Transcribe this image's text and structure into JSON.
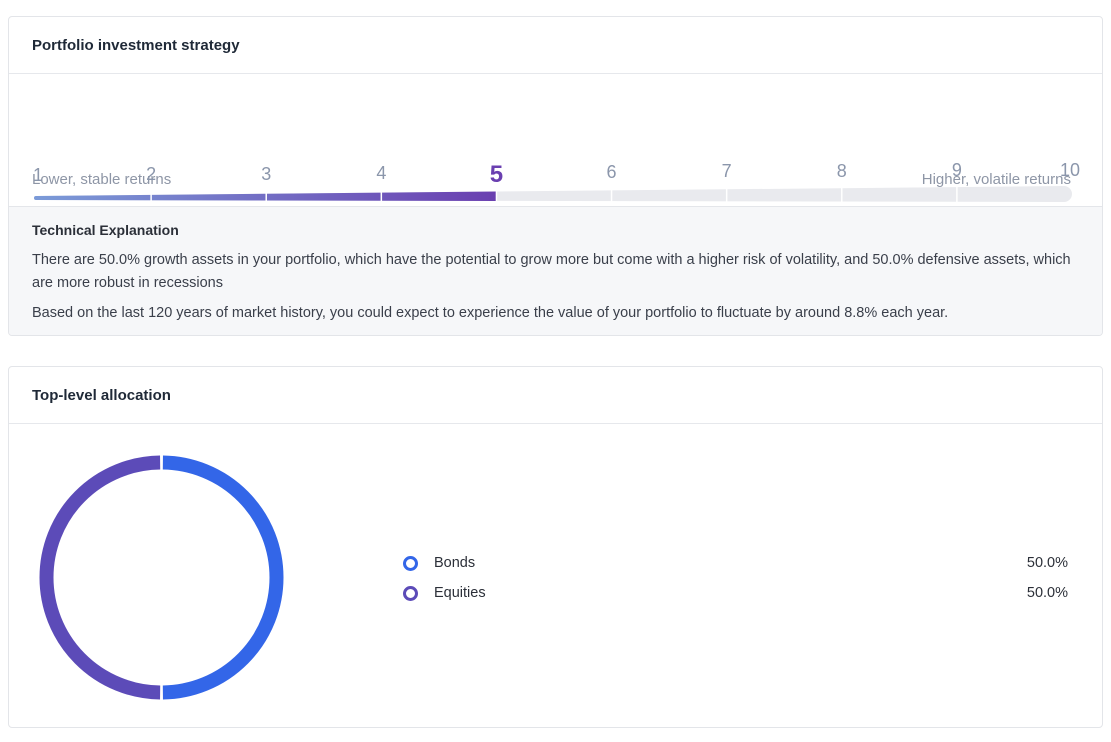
{
  "strategy": {
    "title": "Portfolio investment strategy",
    "scale": {
      "levels": [
        "1",
        "2",
        "3",
        "4",
        "5",
        "6",
        "7",
        "8",
        "9",
        "10"
      ],
      "selected_level": 5,
      "low_caption": "Lower, stable returns",
      "high_caption": "Higher, volatile returns"
    },
    "explanation": {
      "title": "Technical Explanation",
      "paragraph1": "There are 50.0% growth assets in your portfolio, which have the potential to grow more but come with a higher risk of volatility, and 50.0% defensive assets, which are more robust in recessions",
      "paragraph2": "Based on the last 120 years of market history, you could expect to experience the value of your portfolio to fluctuate by around 8.8% each year."
    }
  },
  "allocation": {
    "title": "Top-level allocation",
    "items": [
      {
        "label": "Bonds",
        "value_text": "50.0%",
        "percent": 50.0,
        "color": "#3366e8"
      },
      {
        "label": "Equities",
        "value_text": "50.0%",
        "percent": 50.0,
        "color": "#5c4bb8"
      }
    ]
  },
  "colors": {
    "accent_purple": "#6a3fb0",
    "track_empty": "#e9eaee",
    "fill_start": "#7b9bd8",
    "fill_end": "#6a3fb0"
  }
}
